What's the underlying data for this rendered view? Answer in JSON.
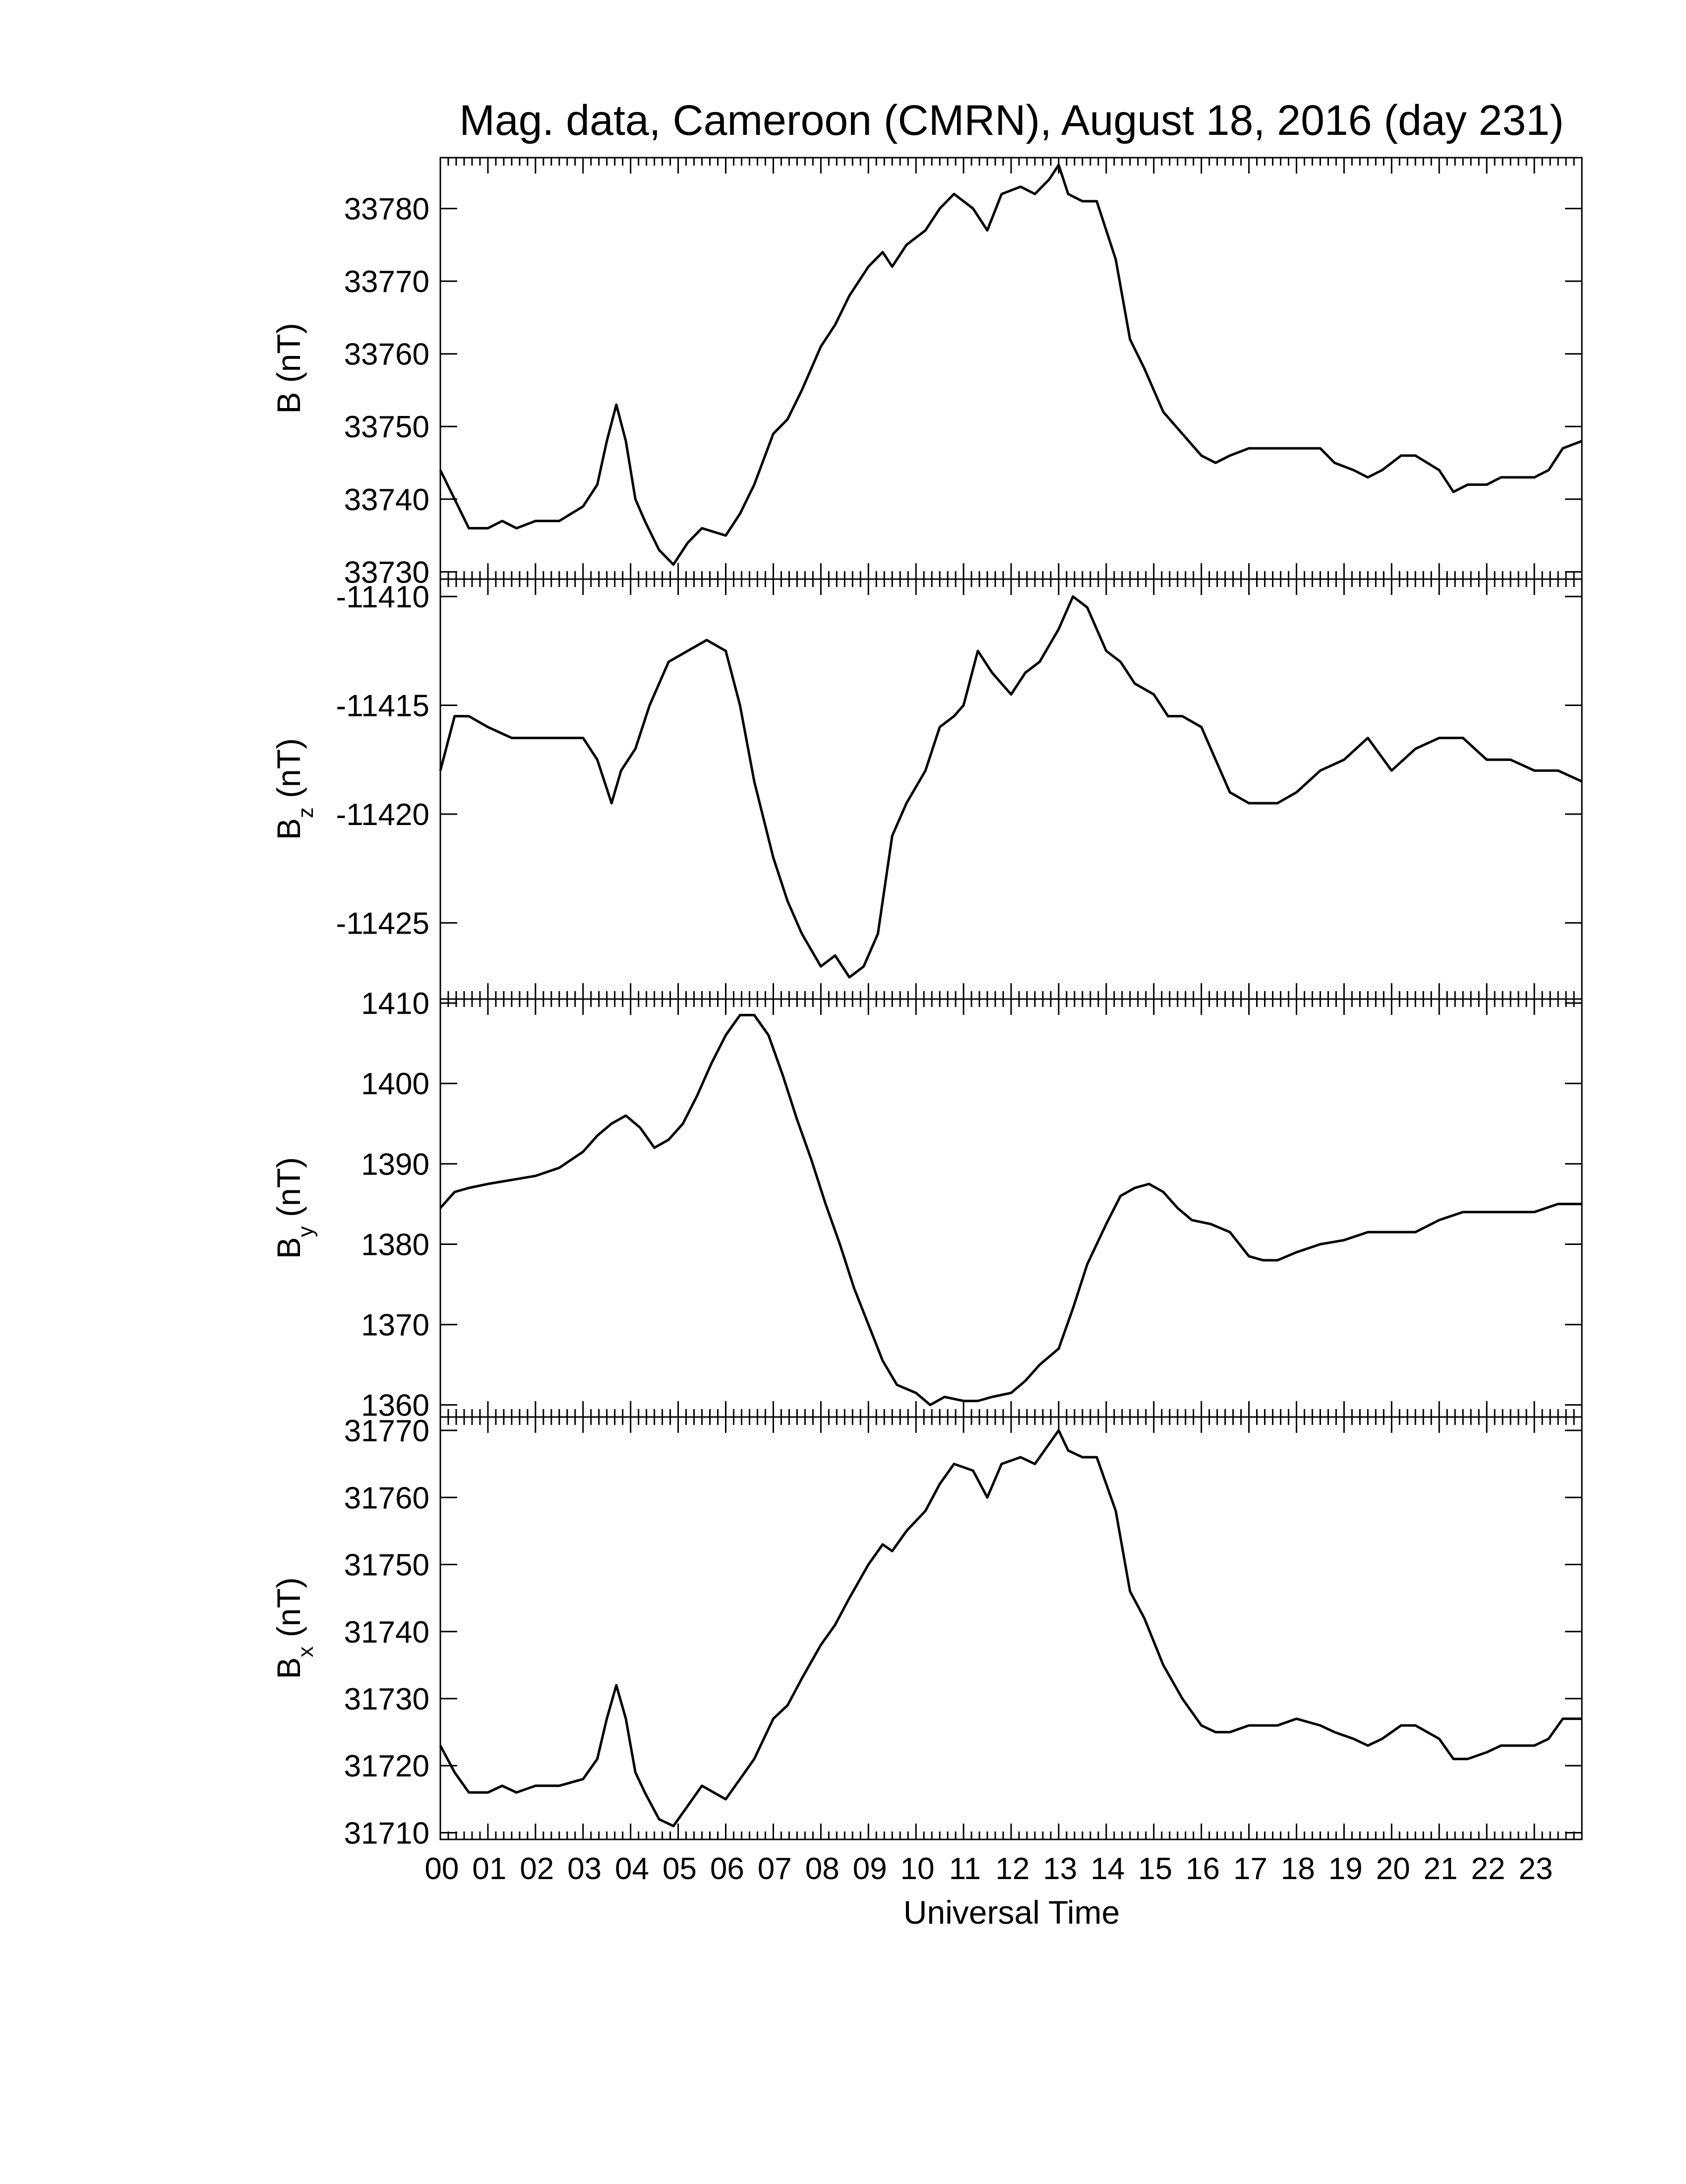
{
  "chart_data": {
    "type": "line",
    "title": "Mag. data, Cameroon (CMRN), August 18, 2016 (day 231)",
    "xlabel": "Universal Time",
    "xticks": [
      "00",
      "01",
      "02",
      "03",
      "04",
      "05",
      "06",
      "07",
      "08",
      "09",
      "10",
      "11",
      "12",
      "13",
      "14",
      "15",
      "16",
      "17",
      "18",
      "19",
      "20",
      "21",
      "22",
      "23"
    ],
    "xlim": [
      0,
      24
    ],
    "panels": [
      {
        "ylabel_main": "B",
        "ylabel_sub": "",
        "ylabel_unit": "(nT)",
        "ylim": [
          33729,
          33787
        ],
        "yticks": [
          33730,
          33740,
          33750,
          33760,
          33770,
          33780
        ],
        "ytick_labels": [
          "33730",
          "33740",
          "33750",
          "33760",
          "33770",
          "33780"
        ],
        "series": {
          "x": [
            0,
            0.3,
            0.6,
            1.0,
            1.3,
            1.6,
            2.0,
            2.5,
            3.0,
            3.3,
            3.5,
            3.7,
            3.9,
            4.1,
            4.3,
            4.6,
            4.9,
            5.2,
            5.5,
            6.0,
            6.3,
            6.6,
            7.0,
            7.3,
            7.6,
            8.0,
            8.3,
            8.6,
            9.0,
            9.3,
            9.5,
            9.8,
            10.2,
            10.5,
            10.8,
            11.2,
            11.5,
            11.8,
            12.2,
            12.5,
            12.8,
            13.0,
            13.2,
            13.5,
            13.8,
            14.2,
            14.5,
            14.8,
            15.2,
            15.6,
            16.0,
            16.3,
            16.6,
            17.0,
            17.3,
            17.6,
            18.0,
            18.5,
            18.8,
            19.2,
            19.5,
            19.8,
            20.2,
            20.5,
            21.0,
            21.3,
            21.6,
            22.0,
            22.3,
            22.6,
            23.0,
            23.3,
            23.6,
            24.0
          ],
          "y": [
            33744,
            33740,
            33736,
            33736,
            33737,
            33736,
            33737,
            33737,
            33739,
            33742,
            33748,
            33753,
            33748,
            33740,
            33737,
            33733,
            33731,
            33734,
            33736,
            33735,
            33738,
            33742,
            33749,
            33751,
            33755,
            33761,
            33764,
            33768,
            33772,
            33774,
            33772,
            33775,
            33777,
            33780,
            33782,
            33780,
            33777,
            33782,
            33783,
            33782,
            33784,
            33786,
            33782,
            33781,
            33781,
            33773,
            33762,
            33758,
            33752,
            33749,
            33746,
            33745,
            33746,
            33747,
            33747,
            33747,
            33747,
            33747,
            33745,
            33744,
            33743,
            33744,
            33746,
            33746,
            33744,
            33741,
            33742,
            33742,
            33743,
            33743,
            33743,
            33744,
            33747,
            33748
          ]
        }
      },
      {
        "ylabel_main": "B",
        "ylabel_sub": "z",
        "ylabel_unit": "(nT)",
        "ylim": [
          -11428.5,
          -11409.2
        ],
        "yticks": [
          -11425,
          -11420,
          -11415,
          -11410
        ],
        "ytick_labels": [
          "-11425",
          "-11420",
          "-11415",
          "-11410"
        ],
        "series": {
          "x": [
            0,
            0.3,
            0.6,
            1.0,
            1.5,
            2.0,
            2.5,
            3.0,
            3.3,
            3.6,
            3.8,
            4.1,
            4.4,
            4.8,
            5.2,
            5.6,
            6.0,
            6.3,
            6.6,
            7.0,
            7.3,
            7.6,
            8.0,
            8.3,
            8.6,
            8.9,
            9.2,
            9.5,
            9.8,
            10.2,
            10.5,
            10.8,
            11.0,
            11.3,
            11.6,
            12.0,
            12.3,
            12.6,
            13.0,
            13.3,
            13.6,
            14.0,
            14.3,
            14.6,
            15.0,
            15.3,
            15.6,
            16.0,
            16.3,
            16.6,
            17.0,
            17.3,
            17.6,
            18.0,
            18.5,
            19.0,
            19.5,
            20.0,
            20.5,
            21.0,
            21.5,
            22.0,
            22.5,
            23.0,
            23.5,
            24.0
          ],
          "y": [
            -11418,
            -11415.5,
            -11415.5,
            -11416,
            -11416.5,
            -11416.5,
            -11416.5,
            -11416.5,
            -11417.5,
            -11419.5,
            -11418,
            -11417,
            -11415,
            -11413,
            -11412.5,
            -11412,
            -11412.5,
            -11415,
            -11418.5,
            -11422,
            -11424,
            -11425.5,
            -11427,
            -11426.5,
            -11427.5,
            -11427,
            -11425.5,
            -11421,
            -11419.5,
            -11418,
            -11416,
            -11415.5,
            -11415,
            -11412.5,
            -11413.5,
            -11414.5,
            -11413.5,
            -11413,
            -11411.5,
            -11410,
            -11410.5,
            -11412.5,
            -11413,
            -11414,
            -11414.5,
            -11415.5,
            -11415.5,
            -11416,
            -11417.5,
            -11419,
            -11419.5,
            -11419.5,
            -11419.5,
            -11419,
            -11418,
            -11417.5,
            -11416.5,
            -11418,
            -11417,
            -11416.5,
            -11416.5,
            -11417.5,
            -11417.5,
            -11418,
            -11418,
            -11418.5
          ]
        }
      },
      {
        "ylabel_main": "B",
        "ylabel_sub": "y",
        "ylabel_unit": "(nT)",
        "ylim": [
          1358.5,
          1410.5
        ],
        "yticks": [
          1360,
          1370,
          1380,
          1390,
          1400,
          1410
        ],
        "ytick_labels": [
          "1360",
          "1370",
          "1380",
          "1390",
          "1400",
          "1410"
        ],
        "series": {
          "x": [
            0,
            0.3,
            0.6,
            1.0,
            1.5,
            2.0,
            2.5,
            3.0,
            3.3,
            3.6,
            3.9,
            4.2,
            4.5,
            4.8,
            5.1,
            5.4,
            5.7,
            6.0,
            6.3,
            6.6,
            6.9,
            7.2,
            7.5,
            7.8,
            8.1,
            8.4,
            8.7,
            9.0,
            9.3,
            9.6,
            10.0,
            10.3,
            10.6,
            11.0,
            11.3,
            11.6,
            12.0,
            12.3,
            12.6,
            13.0,
            13.3,
            13.6,
            14.0,
            14.3,
            14.6,
            14.9,
            15.2,
            15.5,
            15.8,
            16.2,
            16.6,
            17.0,
            17.3,
            17.6,
            18.0,
            18.5,
            19.0,
            19.5,
            20.0,
            20.5,
            21.0,
            21.5,
            22.0,
            22.5,
            23.0,
            23.5,
            24.0
          ],
          "y": [
            1384.5,
            1386.5,
            1387,
            1387.5,
            1388,
            1388.5,
            1389.5,
            1391.5,
            1393.5,
            1395,
            1396,
            1394.5,
            1392,
            1393,
            1395,
            1398.5,
            1402.5,
            1406,
            1408.5,
            1408.5,
            1406,
            1401,
            1395.5,
            1390.5,
            1385,
            1380,
            1374.5,
            1370,
            1365.5,
            1362.5,
            1361.5,
            1360,
            1361,
            1360.5,
            1360.5,
            1361,
            1361.5,
            1363,
            1365,
            1367,
            1372,
            1377.5,
            1382.5,
            1386,
            1387,
            1387.5,
            1386.5,
            1384.5,
            1383,
            1382.5,
            1381.5,
            1378.5,
            1378,
            1378,
            1379,
            1380,
            1380.5,
            1381.5,
            1381.5,
            1381.5,
            1383,
            1384,
            1384,
            1384,
            1384,
            1385,
            1385
          ]
        }
      },
      {
        "ylabel_main": "B",
        "ylabel_sub": "x",
        "ylabel_unit": "(nT)",
        "ylim": [
          31709,
          31772
        ],
        "yticks": [
          31710,
          31720,
          31730,
          31740,
          31750,
          31760,
          31770
        ],
        "ytick_labels": [
          "31710",
          "31720",
          "31730",
          "31740",
          "31750",
          "31760",
          "31770"
        ],
        "series": {
          "x": [
            0,
            0.3,
            0.6,
            1.0,
            1.3,
            1.6,
            2.0,
            2.5,
            3.0,
            3.3,
            3.5,
            3.7,
            3.9,
            4.1,
            4.3,
            4.6,
            4.9,
            5.2,
            5.5,
            6.0,
            6.3,
            6.6,
            7.0,
            7.3,
            7.6,
            8.0,
            8.3,
            8.6,
            9.0,
            9.3,
            9.5,
            9.8,
            10.2,
            10.5,
            10.8,
            11.2,
            11.5,
            11.8,
            12.2,
            12.5,
            12.8,
            13.0,
            13.2,
            13.5,
            13.8,
            14.2,
            14.5,
            14.8,
            15.2,
            15.6,
            16.0,
            16.3,
            16.6,
            17.0,
            17.3,
            17.6,
            18.0,
            18.5,
            18.8,
            19.2,
            19.5,
            19.8,
            20.2,
            20.5,
            21.0,
            21.3,
            21.6,
            22.0,
            22.3,
            22.6,
            23.0,
            23.3,
            23.6,
            24.0
          ],
          "y": [
            31723,
            31719,
            31716,
            31716,
            31717,
            31716,
            31717,
            31717,
            31718,
            31721,
            31727,
            31732,
            31727,
            31719,
            31716,
            31712,
            31711,
            31714,
            31717,
            31715,
            31718,
            31721,
            31727,
            31729,
            31733,
            31738,
            31741,
            31745,
            31750,
            31753,
            31752,
            31755,
            31758,
            31762,
            31765,
            31764,
            31760,
            31765,
            31766,
            31765,
            31768,
            31770,
            31767,
            31766,
            31766,
            31758,
            31746,
            31742,
            31735,
            31730,
            31726,
            31725,
            31725,
            31726,
            31726,
            31726,
            31727,
            31726,
            31725,
            31724,
            31723,
            31724,
            31726,
            31726,
            31724,
            31721,
            31721,
            31722,
            31723,
            31723,
            31723,
            31724,
            31727,
            31727
          ]
        }
      }
    ]
  }
}
